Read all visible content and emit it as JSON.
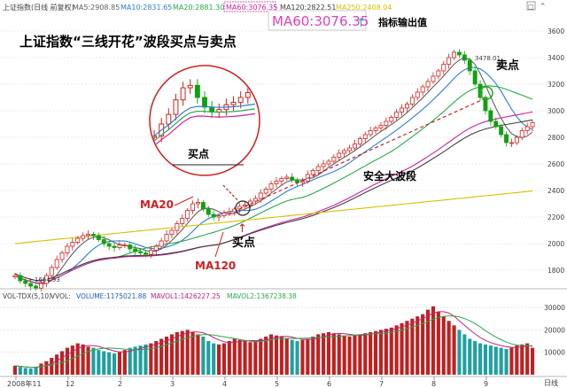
{
  "top_bar": {
    "title": "上证指数(日线 前复权)",
    "ma_items": [
      {
        "label": "MA5:2908.85",
        "color": "#606060"
      },
      {
        "label": "MA10:2831.65",
        "color": "#2a7fd0"
      },
      {
        "label": "MA20:2881.30",
        "color": "#2aa84a"
      },
      {
        "label": "MA60:3076.35",
        "color": "#d020a0"
      },
      {
        "label": "MA120:2822.51",
        "color": "#404040"
      },
      {
        "label": "MA250:2408.04",
        "color": "#d8c000"
      }
    ]
  },
  "main_title": "上证指数“三线开花”波段买点与卖点",
  "ma60_callout": {
    "value": "MA60:3076.35",
    "label": "指标输出值"
  },
  "annotations": {
    "ma20": "MA20",
    "ma120": "MA120",
    "buy_point_main": "买点",
    "buy_point_inset": "买点",
    "sell_point": "卖点",
    "wave_label": "安全大波段",
    "high_label": "3478.01",
    "low_label": "←1664.93"
  },
  "price_axis": [
    "3600",
    "3400",
    "3200",
    "3000",
    "2800",
    "2600",
    "2400",
    "2200",
    "2000",
    "1800"
  ],
  "volume_bar": {
    "title": "VOL-TDX(5,10)",
    "vol_label": "VVOL:",
    "items": [
      {
        "label": "VOLUME:1175021.88",
        "color": "#2060c0"
      },
      {
        "label": "MAVOL1:1426227.25",
        "color": "#c02080"
      },
      {
        "label": "MAVOL2:1367238.38",
        "color": "#2aa84a"
      }
    ]
  },
  "volume_axis": [
    "30000",
    "20000",
    "10000"
  ],
  "x_axis": [
    "2008年11",
    "12",
    "2",
    "3",
    "4",
    "5",
    "6",
    "7",
    "8",
    "9"
  ],
  "x_axis_right": "日线",
  "chart_data": {
    "type": "candlestick",
    "title": "上证指数“三线开花”波段买点与卖点",
    "x_labels": [
      "2008年11",
      "12",
      "2",
      "3",
      "4",
      "5",
      "6",
      "7",
      "8",
      "9"
    ],
    "ylim": [
      1700,
      3700
    ],
    "volume_ylim": [
      0,
      32000
    ],
    "volume_ticks": [
      10000,
      20000,
      30000
    ],
    "price_ticks": [
      1800,
      2000,
      2200,
      2400,
      2600,
      2800,
      3000,
      3200,
      3400,
      3600
    ],
    "close": [
      1760,
      1720,
      1700,
      1680,
      1665,
      1700,
      1760,
      1820,
      1880,
      1930,
      1980,
      2010,
      2040,
      2060,
      2070,
      2060,
      2030,
      2000,
      1980,
      1970,
      1990,
      1990,
      1960,
      1940,
      1930,
      1920,
      1950,
      1980,
      2020,
      2070,
      2100,
      2150,
      2190,
      2250,
      2300,
      2310,
      2260,
      2220,
      2200,
      2210,
      2230,
      2240,
      2260,
      2280,
      2290,
      2320,
      2340,
      2380,
      2410,
      2450,
      2470,
      2490,
      2500,
      2480,
      2460,
      2470,
      2520,
      2550,
      2580,
      2600,
      2620,
      2650,
      2680,
      2700,
      2720,
      2750,
      2790,
      2820,
      2850,
      2870,
      2890,
      2920,
      2950,
      2990,
      3020,
      3050,
      3100,
      3140,
      3180,
      3220,
      3260,
      3300,
      3350,
      3400,
      3440,
      3420,
      3380,
      3300,
      3200,
      3100,
      3000,
      2920,
      2880,
      2820,
      2760,
      2760,
      2800,
      2850,
      2880,
      2910
    ],
    "volume": [
      4000,
      3500,
      3000,
      2800,
      3500,
      5000,
      6000,
      7500,
      9000,
      10500,
      12000,
      13000,
      14000,
      13500,
      12500,
      12000,
      11000,
      10500,
      10000,
      9500,
      10000,
      11000,
      12000,
      12500,
      13000,
      13500,
      14000,
      15000,
      16000,
      17000,
      18000,
      19000,
      19500,
      20000,
      19000,
      18000,
      17000,
      15000,
      14000,
      13500,
      14000,
      15000,
      16000,
      15500,
      15000,
      14500,
      15000,
      16000,
      17000,
      18000,
      17500,
      17000,
      16000,
      15500,
      15000,
      15500,
      16000,
      17000,
      18000,
      18500,
      19000,
      18500,
      18000,
      17500,
      17000,
      17500,
      18000,
      18500,
      19000,
      19500,
      20000,
      20500,
      21000,
      22000,
      23000,
      24000,
      25000,
      26000,
      27000,
      29000,
      30500,
      28000,
      26000,
      24000,
      22000,
      20000,
      18000,
      16000,
      15000,
      14000,
      13500,
      13000,
      12500,
      12000,
      11500,
      12000,
      13000,
      13500,
      14000,
      12000
    ],
    "series": [
      {
        "name": "MA5",
        "color": "#606060",
        "period": 5
      },
      {
        "name": "MA10",
        "color": "#2a7fd0",
        "period": 10
      },
      {
        "name": "MA20",
        "color": "#2aa84a",
        "period": 20
      },
      {
        "name": "MA60",
        "color": "#d020a0",
        "period": 60
      },
      {
        "name": "MA120",
        "color": "#404040",
        "period": 120
      },
      {
        "name": "MA250",
        "color": "#d8c000",
        "period": 250
      }
    ]
  }
}
